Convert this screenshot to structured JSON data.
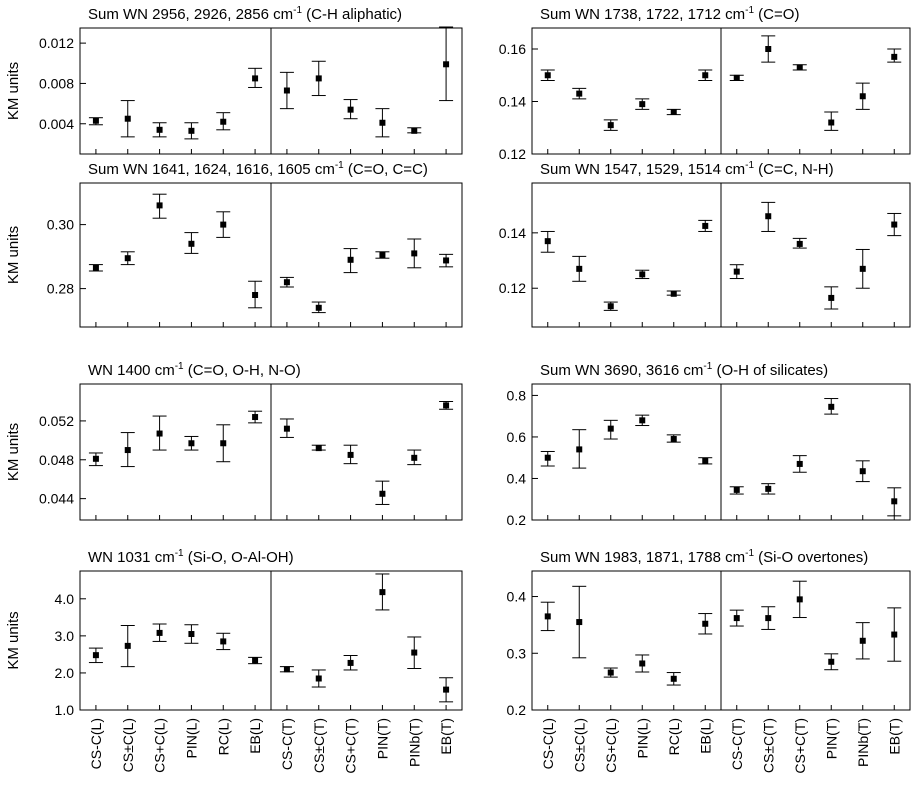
{
  "categories": [
    "CS-C(L)",
    "CS±C(L)",
    "CS+C(L)",
    "PIN(L)",
    "RC(L)",
    "EB(L)",
    "CS-C(T)",
    "CS±C(T)",
    "CS+C(T)",
    "PIN(T)",
    "PINb(T)",
    "EB(T)"
  ],
  "categories_right": [
    "CS-C(L)",
    "CS±C(L)",
    "CS+C(L)",
    "PIN(L)",
    "RC(L)",
    "EB(L)",
    "CS-C(T)",
    "CS±C(T)",
    "CS+C(T)",
    "PIN(T)",
    "PINb(T)",
    "EB(T)"
  ],
  "chart_data": [
    {
      "type": "scatter",
      "title_main": "Sum WN 2956, 2926, 2856 cm",
      "title_sup": "-1",
      "title_rest": " (C-H aliphatic)",
      "ylabel": "KM units",
      "ylim": [
        0.001,
        0.0135
      ],
      "yticks": [
        "0.004",
        "0.008",
        "0.012"
      ],
      "series": [
        {
          "values": [
            0.0043,
            0.0045,
            0.0034,
            0.0033,
            0.0042,
            0.0085,
            0.0073,
            0.0085,
            0.0054,
            0.0041,
            0.0033,
            0.0099
          ],
          "err_low": [
            0.0039,
            0.0027,
            0.0027,
            0.0025,
            0.0034,
            0.0076,
            0.0055,
            0.0068,
            0.0045,
            0.0027,
            0.0031,
            0.0063
          ],
          "err_high": [
            0.0046,
            0.0063,
            0.0041,
            0.0041,
            0.0051,
            0.0095,
            0.0091,
            0.0102,
            0.0064,
            0.0055,
            0.0036,
            0.0136
          ]
        }
      ]
    },
    {
      "type": "scatter",
      "title_main": "Sum WN 1738, 1722, 1712 cm",
      "title_sup": "-1",
      "title_rest": " (C=O)",
      "ylabel": "",
      "ylim": [
        0.12,
        0.168
      ],
      "yticks": [
        "0.12",
        "0.14",
        "0.16"
      ],
      "series": [
        {
          "values": [
            0.15,
            0.143,
            0.131,
            0.139,
            0.136,
            0.15,
            0.149,
            0.16,
            0.153,
            0.132,
            0.142,
            0.157
          ],
          "err_low": [
            0.148,
            0.141,
            0.129,
            0.137,
            0.135,
            0.148,
            0.148,
            0.155,
            0.152,
            0.129,
            0.137,
            0.155
          ],
          "err_high": [
            0.152,
            0.145,
            0.133,
            0.141,
            0.137,
            0.152,
            0.15,
            0.165,
            0.154,
            0.136,
            0.147,
            0.16
          ]
        }
      ]
    },
    {
      "type": "scatter",
      "title_main": "Sum WN 1641, 1624, 1616, 1605 cm",
      "title_sup": "-1",
      "title_rest": " (C=O, C=C)",
      "ylabel": "KM units",
      "ylim": [
        0.268,
        0.313
      ],
      "yticks": [
        "0.28",
        "0.30"
      ],
      "series": [
        {
          "values": [
            0.2865,
            0.2895,
            0.306,
            0.294,
            0.3,
            0.278,
            0.282,
            0.274,
            0.289,
            0.2905,
            0.291,
            0.2888
          ],
          "err_low": [
            0.2855,
            0.2875,
            0.302,
            0.291,
            0.296,
            0.274,
            0.2805,
            0.2725,
            0.285,
            0.2895,
            0.2865,
            0.2868
          ],
          "err_high": [
            0.2875,
            0.2915,
            0.3095,
            0.2975,
            0.304,
            0.2823,
            0.2835,
            0.2758,
            0.2925,
            0.2915,
            0.2955,
            0.2907
          ]
        }
      ]
    },
    {
      "type": "scatter",
      "title_main": "Sum WN 1547, 1529, 1514 cm",
      "title_sup": "-1",
      "title_rest": " (C=C, N-H)",
      "ylabel": "",
      "ylim": [
        0.106,
        0.158
      ],
      "yticks": [
        "0.12",
        "0.14"
      ],
      "series": [
        {
          "values": [
            0.137,
            0.127,
            0.1135,
            0.125,
            0.118,
            0.1425,
            0.126,
            0.146,
            0.136,
            0.1165,
            0.127,
            0.143
          ],
          "err_low": [
            0.133,
            0.1225,
            0.112,
            0.1235,
            0.1175,
            0.1405,
            0.1235,
            0.1405,
            0.1345,
            0.1125,
            0.12,
            0.139
          ],
          "err_high": [
            0.1405,
            0.1315,
            0.115,
            0.1265,
            0.119,
            0.1445,
            0.1285,
            0.151,
            0.138,
            0.1205,
            0.134,
            0.147
          ]
        }
      ]
    },
    {
      "type": "scatter",
      "title_main": "WN 1400 cm",
      "title_sup": "-1",
      "title_rest": " (C=O, O-H, N-O)",
      "ylabel": "KM units",
      "ylim": [
        0.0418,
        0.0558
      ],
      "yticks": [
        "0.044",
        "0.048",
        "0.052"
      ],
      "series": [
        {
          "values": [
            0.0481,
            0.049,
            0.0507,
            0.0497,
            0.0497,
            0.0524,
            0.0512,
            0.0492,
            0.0485,
            0.0445,
            0.0482,
            0.0536
          ],
          "err_low": [
            0.0474,
            0.0473,
            0.049,
            0.049,
            0.0478,
            0.0518,
            0.0503,
            0.049,
            0.0476,
            0.0434,
            0.0475,
            0.0532
          ],
          "err_high": [
            0.0487,
            0.0508,
            0.0525,
            0.0504,
            0.0516,
            0.053,
            0.0522,
            0.0495,
            0.0495,
            0.0458,
            0.049,
            0.054
          ]
        }
      ]
    },
    {
      "type": "scatter",
      "title_main": "Sum WN 3690, 3616 cm",
      "title_sup": "-1",
      "title_rest": " (O-H of silicates)",
      "ylabel": "",
      "ylim": [
        0.2,
        0.855
      ],
      "yticks": [
        "0.2",
        "0.4",
        "0.6",
        "0.8"
      ],
      "series": [
        {
          "values": [
            0.5,
            0.54,
            0.64,
            0.68,
            0.59,
            0.485,
            0.345,
            0.35,
            0.47,
            0.745,
            0.435,
            0.29
          ],
          "err_low": [
            0.46,
            0.45,
            0.59,
            0.655,
            0.575,
            0.47,
            0.325,
            0.325,
            0.43,
            0.71,
            0.385,
            0.22
          ],
          "err_high": [
            0.53,
            0.635,
            0.68,
            0.705,
            0.61,
            0.5,
            0.36,
            0.375,
            0.51,
            0.785,
            0.485,
            0.355
          ]
        }
      ]
    },
    {
      "type": "scatter",
      "title_main": "WN 1031 cm",
      "title_sup": "-1",
      "title_rest": " (Si-O, O-Al-OH)",
      "ylabel": "KM units",
      "ylim": [
        1.0,
        4.75
      ],
      "yticks": [
        "1.0",
        "2.0",
        "3.0",
        "4.0"
      ],
      "series": [
        {
          "values": [
            2.48,
            2.73,
            3.08,
            3.05,
            2.85,
            2.34,
            2.1,
            1.85,
            2.27,
            4.18,
            2.55,
            1.55
          ],
          "err_low": [
            2.28,
            2.17,
            2.85,
            2.8,
            2.63,
            2.25,
            2.03,
            1.62,
            2.08,
            3.7,
            2.12,
            1.22
          ],
          "err_high": [
            2.67,
            3.28,
            3.32,
            3.3,
            3.07,
            2.42,
            2.17,
            2.08,
            2.47,
            4.67,
            2.97,
            1.87
          ]
        }
      ]
    },
    {
      "type": "scatter",
      "title_main": "Sum WN 1983, 1871, 1788 cm",
      "title_sup": "-1",
      "title_rest": " (Si-O overtones)",
      "ylabel": "",
      "ylim": [
        0.2,
        0.445
      ],
      "yticks": [
        "0.2",
        "0.3",
        "0.4"
      ],
      "series": [
        {
          "values": [
            0.365,
            0.355,
            0.266,
            0.282,
            0.255,
            0.352,
            0.362,
            0.362,
            0.395,
            0.285,
            0.322,
            0.333
          ],
          "err_low": [
            0.34,
            0.292,
            0.258,
            0.267,
            0.244,
            0.334,
            0.348,
            0.342,
            0.363,
            0.271,
            0.29,
            0.286
          ],
          "err_high": [
            0.39,
            0.418,
            0.274,
            0.297,
            0.266,
            0.37,
            0.376,
            0.382,
            0.427,
            0.299,
            0.354,
            0.38
          ]
        }
      ]
    }
  ]
}
